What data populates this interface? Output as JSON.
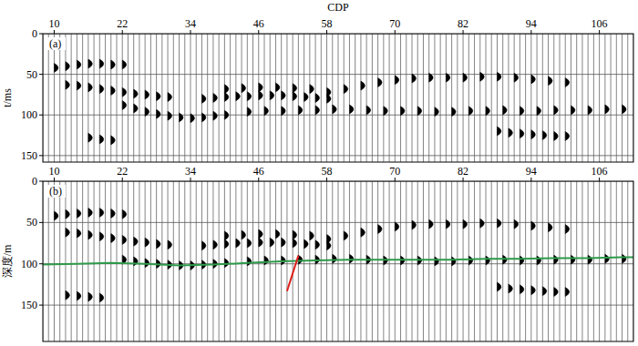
{
  "chart_data": [
    {
      "type": "wiggle",
      "panel_label": "(a)",
      "x_label": "CDP",
      "y_label": "t/ms",
      "xlim": [
        8,
        112
      ],
      "ylim": [
        158,
        0
      ],
      "xticks": [
        10,
        22,
        34,
        46,
        58,
        70,
        82,
        94,
        106
      ],
      "yticks": [
        0,
        50,
        100,
        150
      ],
      "grid": true,
      "series": [
        {
          "x": [
            10,
            12,
            14,
            16,
            18,
            20,
            22
          ],
          "values": [
            42,
            40,
            38,
            37,
            37,
            38,
            38
          ]
        },
        {
          "x": [
            12,
            14,
            16,
            18,
            20,
            22,
            24,
            26,
            28,
            30
          ],
          "values": [
            63,
            64,
            66,
            68,
            70,
            72,
            74,
            75,
            77,
            78
          ]
        },
        {
          "x": [
            22,
            24,
            26,
            28,
            30,
            32,
            34,
            36,
            38,
            40
          ],
          "values": [
            88,
            92,
            96,
            99,
            101,
            103,
            104,
            103,
            101,
            100
          ]
        },
        {
          "x": [
            36,
            38,
            40,
            42,
            44,
            46,
            48,
            50,
            52,
            54,
            56,
            58
          ],
          "values": [
            80,
            79,
            78,
            77,
            77,
            76,
            76,
            76,
            77,
            78,
            79,
            80
          ]
        },
        {
          "x": [
            44,
            47,
            50,
            53,
            56,
            59,
            62,
            65,
            68,
            71,
            74,
            77,
            80,
            83,
            86,
            89,
            92,
            95,
            98,
            101,
            104,
            107,
            110
          ],
          "values": [
            96,
            95,
            95,
            94,
            94,
            93,
            93,
            94,
            95,
            95,
            95,
            96,
            96,
            95,
            95,
            94,
            95,
            95,
            94,
            94,
            94,
            93,
            93
          ]
        },
        {
          "x": [
            58,
            61,
            64,
            67,
            70,
            73,
            76,
            79,
            82,
            85,
            88,
            91,
            94,
            97,
            100
          ],
          "values": [
            72,
            68,
            64,
            60,
            57,
            55,
            54,
            54,
            54,
            53,
            53,
            54,
            56,
            58,
            60
          ]
        },
        {
          "x": [
            88,
            90,
            92,
            94,
            96,
            98,
            100
          ],
          "values": [
            120,
            122,
            123,
            124,
            125,
            126,
            126
          ]
        },
        {
          "x": [
            16,
            18,
            20
          ],
          "values": [
            128,
            130,
            131
          ]
        },
        {
          "x": [
            40,
            43,
            46,
            49,
            52,
            55
          ],
          "values": [
            68,
            67,
            66,
            66,
            67,
            68
          ]
        }
      ]
    },
    {
      "type": "wiggle",
      "panel_label": "(b)",
      "y_label": "深度/m",
      "xlim": [
        8,
        112
      ],
      "ylim": [
        194,
        0
      ],
      "xticks": [
        10,
        22,
        34,
        46,
        58,
        70,
        82,
        94,
        106
      ],
      "yticks": [
        0,
        50,
        100,
        150
      ],
      "grid": true,
      "series": [
        {
          "x": [
            10,
            12,
            14,
            16,
            18,
            20,
            22
          ],
          "values": [
            42,
            40,
            39,
            38,
            38,
            39,
            40
          ]
        },
        {
          "x": [
            12,
            14,
            16,
            18,
            20,
            22,
            24,
            26,
            28,
            30
          ],
          "values": [
            62,
            63,
            65,
            67,
            69,
            71,
            73,
            74,
            76,
            77
          ]
        },
        {
          "x": [
            22,
            24,
            26,
            28,
            30,
            32,
            34,
            36,
            38,
            40
          ],
          "values": [
            95,
            97,
            99,
            100,
            101,
            102,
            102,
            101,
            100,
            99
          ]
        },
        {
          "x": [
            36,
            38,
            40,
            42,
            44,
            46,
            48,
            50,
            52,
            54,
            56,
            58
          ],
          "values": [
            78,
            77,
            76,
            75,
            75,
            74,
            74,
            74,
            75,
            76,
            77,
            78
          ]
        },
        {
          "x": [
            44,
            47,
            50,
            53,
            56,
            59,
            62,
            65,
            68,
            71,
            74,
            77,
            80,
            83,
            86,
            89,
            92,
            95,
            98,
            101,
            104,
            107,
            110
          ],
          "values": [
            97,
            96,
            96,
            95,
            95,
            94,
            94,
            95,
            96,
            96,
            96,
            97,
            97,
            96,
            96,
            95,
            96,
            96,
            95,
            95,
            95,
            94,
            94
          ]
        },
        {
          "x": [
            58,
            61,
            64,
            67,
            70,
            73,
            76,
            79,
            82,
            85,
            88,
            91,
            94,
            97,
            100
          ],
          "values": [
            70,
            66,
            62,
            58,
            55,
            53,
            52,
            52,
            52,
            51,
            51,
            52,
            54,
            56,
            58
          ]
        },
        {
          "x": [
            88,
            90,
            92,
            94,
            96,
            98,
            100
          ],
          "values": [
            128,
            130,
            131,
            132,
            133,
            134,
            134
          ]
        },
        {
          "x": [
            12,
            14,
            16,
            18
          ],
          "values": [
            138,
            139,
            140,
            141
          ]
        },
        {
          "x": [
            40,
            43,
            46,
            49,
            52,
            55
          ],
          "values": [
            66,
            65,
            64,
            64,
            65,
            66
          ]
        },
        {
          "type": "line",
          "color": "#2e9a4a",
          "x": [
            8,
            14,
            20,
            26,
            32,
            38,
            44,
            50,
            56,
            62,
            68,
            74,
            80,
            86,
            92,
            98,
            104,
            110,
            112
          ],
          "values": [
            101,
            100,
            99,
            100,
            102,
            101,
            99,
            97,
            96,
            95,
            95,
            95,
            95,
            94,
            94,
            93,
            93,
            92,
            92
          ]
        },
        {
          "type": "line",
          "color": "#e0201c",
          "x": [
            53,
            51
          ],
          "values": [
            90,
            133
          ]
        }
      ]
    }
  ]
}
